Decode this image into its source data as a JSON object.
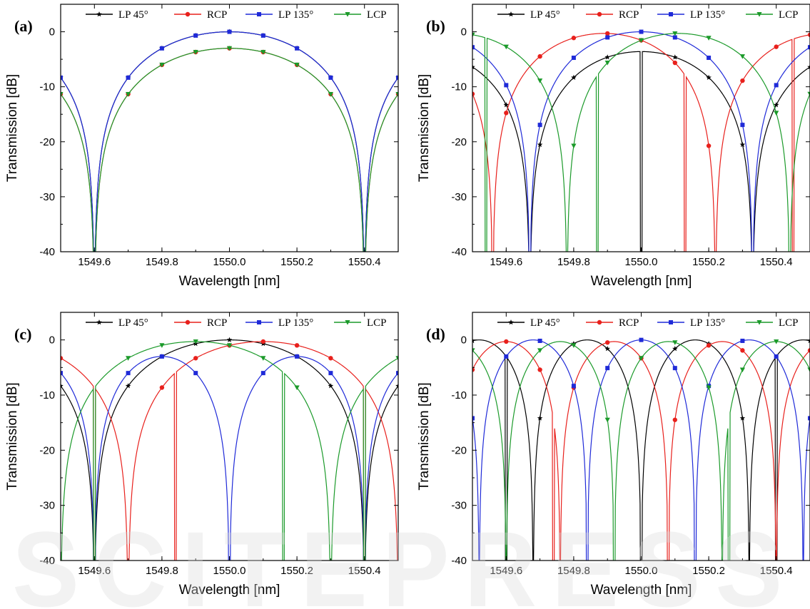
{
  "figure": {
    "watermark_text": "SCITEPRESS"
  },
  "colors": {
    "LP45": "#000000",
    "RCP": "#e8201c",
    "LP135": "#1f2ad8",
    "LCP": "#1b9a2a"
  },
  "chart_data": [
    {
      "type": "line",
      "panel_label": "(a)",
      "xlabel": "Wavelength [nm]",
      "ylabel": "Transmission [dB]",
      "xlim": [
        1549.5,
        1550.5
      ],
      "ylim": [
        -40,
        5
      ],
      "xticks": [
        "1549.6",
        "1549.8",
        "1550.0",
        "1550.2",
        "1550.4"
      ],
      "yticks": [
        "0",
        "-10",
        "-20",
        "-30",
        "-40"
      ],
      "legend": [
        "LP 45°",
        "RCP",
        "LP 135°",
        "LCP"
      ],
      "legend_position": "top",
      "series": [
        {
          "name": "LP 45°",
          "period": 0.8,
          "center": 1550.0,
          "peak": 0
        },
        {
          "name": "RCP",
          "period": 0.8,
          "center": 1550.0,
          "peak": -3
        },
        {
          "name": "LP 135°",
          "period": 0.8,
          "center": 1550.0,
          "peak": 0
        },
        {
          "name": "LCP",
          "period": 0.8,
          "center": 1550.0,
          "peak": -3
        }
      ]
    },
    {
      "type": "line",
      "panel_label": "(b)",
      "xlabel": "Wavelength [nm]",
      "ylabel": "Transmission [dB]",
      "xlim": [
        1549.5,
        1550.5
      ],
      "ylim": [
        -40,
        5
      ],
      "xticks": [
        "1549.6",
        "1549.8",
        "1550.0",
        "1550.2",
        "1550.4"
      ],
      "yticks": [
        "0",
        "-10",
        "-20",
        "-30",
        "-40"
      ],
      "legend": [
        "LP 45°",
        "RCP",
        "LP 135°",
        "LCP"
      ],
      "legend_position": "top",
      "series": [
        {
          "name": "LP 45°",
          "period": 0.66,
          "center": 1550.0,
          "peak": -3.6,
          "nulls": [
            1549.67,
            1550.0,
            1550.33
          ]
        },
        {
          "name": "RCP",
          "period": 0.66,
          "center": 1549.89,
          "peak": -0.3,
          "nulls": [
            1549.56,
            1550.13,
            1550.45
          ]
        },
        {
          "name": "LP 135°",
          "period": 0.66,
          "center": 1550.0,
          "peak": 0,
          "nulls": [
            1549.67,
            1550.33
          ]
        },
        {
          "name": "LCP",
          "period": 0.66,
          "center": 1550.11,
          "peak": -0.3,
          "nulls": [
            1549.54,
            1549.87,
            1550.44
          ]
        }
      ]
    },
    {
      "type": "line",
      "panel_label": "(c)",
      "xlabel": "Wavelength [nm]",
      "ylabel": "Transmission [dB]",
      "xlim": [
        1549.5,
        1550.5
      ],
      "ylim": [
        -40,
        5
      ],
      "xticks": [
        "1549.6",
        "1549.8",
        "1550.0",
        "1550.2",
        "1550.4"
      ],
      "yticks": [
        "0",
        "-10",
        "-20",
        "-30",
        "-40"
      ],
      "legend": [
        "LP 45°",
        "RCP",
        "LP 135°",
        "LCP"
      ],
      "legend_position": "top",
      "series": [
        {
          "name": "LP 45°",
          "period": 0.8,
          "center": 1550.0,
          "peak": 0,
          "nulls": [
            1549.6,
            1550.4
          ]
        },
        {
          "name": "RCP",
          "period": 0.8,
          "center": 1550.1,
          "peak": -0.3,
          "nulls": [
            1549.6,
            1549.84,
            1550.4
          ]
        },
        {
          "name": "LP 135°",
          "period": 0.4,
          "center": 1549.8,
          "peak": -3,
          "nulls": [
            1549.6,
            1550.0,
            1550.4
          ]
        },
        {
          "name": "LCP",
          "period": 0.8,
          "center": 1549.9,
          "peak": -0.3,
          "nulls": [
            1549.6,
            1550.16,
            1550.4
          ]
        }
      ]
    },
    {
      "type": "line",
      "panel_label": "(d)",
      "xlabel": "Wavelength [nm]",
      "ylabel": "Transmission [dB]",
      "xlim": [
        1549.5,
        1550.5
      ],
      "ylim": [
        -40,
        5
      ],
      "xticks": [
        "1549.6",
        "1549.8",
        "1550.0",
        "1550.2",
        "1550.4"
      ],
      "yticks": [
        "0",
        "-10",
        "-20",
        "-30",
        "-40"
      ],
      "legend": [
        "LP 45°",
        "RCP",
        "LP 135°",
        "LCP"
      ],
      "legend_position": "top",
      "series": [
        {
          "name": "LP 45°",
          "period": 0.32,
          "center": 1549.84,
          "peak": 0,
          "nulls": [
            1549.6,
            1550.0,
            1550.4
          ]
        },
        {
          "name": "RCP",
          "period": 0.32,
          "center": 1549.92,
          "peak": -0.3,
          "nulls": [
            1549.74,
            1550.08
          ]
        },
        {
          "name": "LP 135°",
          "period": 0.32,
          "center": 1550.0,
          "peak": 0,
          "nulls": [
            1549.84,
            1550.16
          ]
        },
        {
          "name": "LCP",
          "period": 0.32,
          "center": 1550.08,
          "peak": -0.3,
          "nulls": [
            1549.92,
            1550.26
          ]
        }
      ]
    }
  ]
}
